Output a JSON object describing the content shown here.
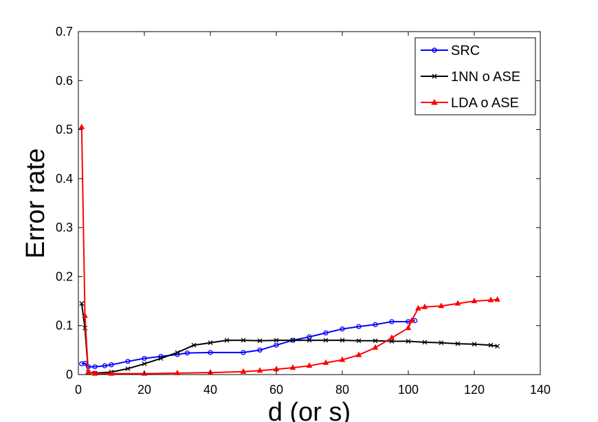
{
  "chart_data": {
    "type": "line",
    "title": "",
    "xlabel": "d (or s)",
    "ylabel": "Error rate",
    "xlim": [
      0,
      140
    ],
    "ylim": [
      0,
      0.7
    ],
    "xticks": [
      "0",
      "20",
      "40",
      "60",
      "80",
      "100",
      "120",
      "140"
    ],
    "yticks": [
      "0",
      "0.1",
      "0.2",
      "0.3",
      "0.4",
      "0.5",
      "0.6",
      "0.7"
    ],
    "grid": false,
    "legend_position": "top-right",
    "series": [
      {
        "name": "SRC",
        "color": "#0000ff",
        "marker": "circle",
        "x": [
          1,
          2,
          3,
          5,
          8,
          10,
          15,
          20,
          25,
          30,
          33,
          40,
          50,
          55,
          60,
          65,
          70,
          75,
          80,
          85,
          90,
          95,
          100,
          102
        ],
        "y": [
          0.022,
          0.023,
          0.016,
          0.016,
          0.018,
          0.02,
          0.027,
          0.033,
          0.037,
          0.041,
          0.044,
          0.045,
          0.045,
          0.05,
          0.06,
          0.07,
          0.077,
          0.085,
          0.093,
          0.098,
          0.102,
          0.108,
          0.108,
          0.11
        ]
      },
      {
        "name": "1NN o ASE",
        "color": "#000000",
        "marker": "x",
        "x": [
          1,
          2,
          3,
          5,
          10,
          15,
          20,
          25,
          30,
          35,
          40,
          45,
          50,
          55,
          60,
          65,
          70,
          75,
          80,
          85,
          90,
          95,
          100,
          105,
          110,
          115,
          120,
          125,
          127
        ],
        "y": [
          0.145,
          0.095,
          0.005,
          0.003,
          0.005,
          0.012,
          0.022,
          0.033,
          0.045,
          0.06,
          0.065,
          0.07,
          0.07,
          0.069,
          0.07,
          0.07,
          0.07,
          0.07,
          0.07,
          0.069,
          0.069,
          0.068,
          0.068,
          0.066,
          0.065,
          0.063,
          0.062,
          0.06,
          0.058
        ]
      },
      {
        "name": "LDA o ASE",
        "color": "#ff0000",
        "marker": "triangle",
        "x": [
          1,
          2,
          3,
          5,
          10,
          20,
          30,
          40,
          50,
          55,
          60,
          65,
          70,
          75,
          80,
          85,
          90,
          95,
          100,
          101,
          103,
          105,
          110,
          115,
          120,
          125,
          127
        ],
        "y": [
          0.505,
          0.12,
          0.005,
          0.002,
          0.002,
          0.002,
          0.003,
          0.004,
          0.006,
          0.008,
          0.011,
          0.014,
          0.018,
          0.024,
          0.03,
          0.04,
          0.055,
          0.075,
          0.095,
          0.11,
          0.135,
          0.138,
          0.14,
          0.145,
          0.15,
          0.152,
          0.153
        ]
      }
    ]
  }
}
